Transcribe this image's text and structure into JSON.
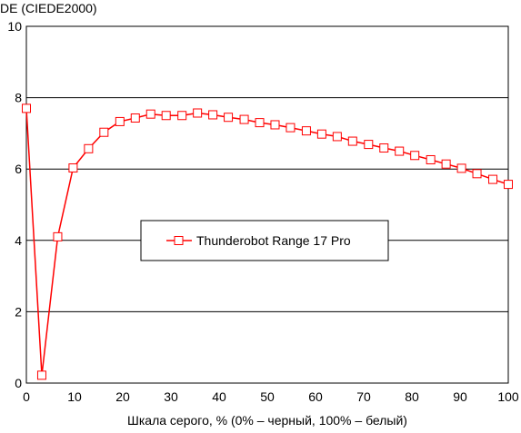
{
  "chart_data": {
    "type": "line",
    "title": "",
    "ylabel": "DE (CIEDE2000)",
    "xlabel": "Шкала серого, % (0% – черный, 100% – белый)",
    "xlim": [
      0,
      100
    ],
    "ylim": [
      0,
      10
    ],
    "x_ticks": [
      0,
      10,
      20,
      30,
      40,
      50,
      60,
      70,
      80,
      90,
      100
    ],
    "y_ticks": [
      0,
      2,
      4,
      6,
      8,
      10
    ],
    "grid": "horizontal",
    "legend_position": "center-left",
    "series": [
      {
        "name": "Thunderobot Range 17 Pro",
        "color": "#ff0000",
        "marker": "square",
        "x": [
          0,
          3.2,
          6.5,
          9.7,
          12.9,
          16.1,
          19.4,
          22.6,
          25.8,
          29.0,
          32.3,
          35.5,
          38.7,
          41.9,
          45.2,
          48.4,
          51.6,
          54.8,
          58.1,
          61.3,
          64.5,
          67.7,
          71.0,
          74.2,
          77.4,
          80.6,
          83.9,
          87.1,
          90.3,
          93.5,
          96.8,
          100
        ],
        "values": [
          7.7,
          0.22,
          4.1,
          6.03,
          6.57,
          7.03,
          7.33,
          7.43,
          7.54,
          7.5,
          7.5,
          7.57,
          7.52,
          7.45,
          7.39,
          7.3,
          7.24,
          7.16,
          7.07,
          6.98,
          6.91,
          6.78,
          6.69,
          6.59,
          6.5,
          6.38,
          6.26,
          6.14,
          6.02,
          5.87,
          5.71,
          5.57
        ]
      }
    ]
  }
}
